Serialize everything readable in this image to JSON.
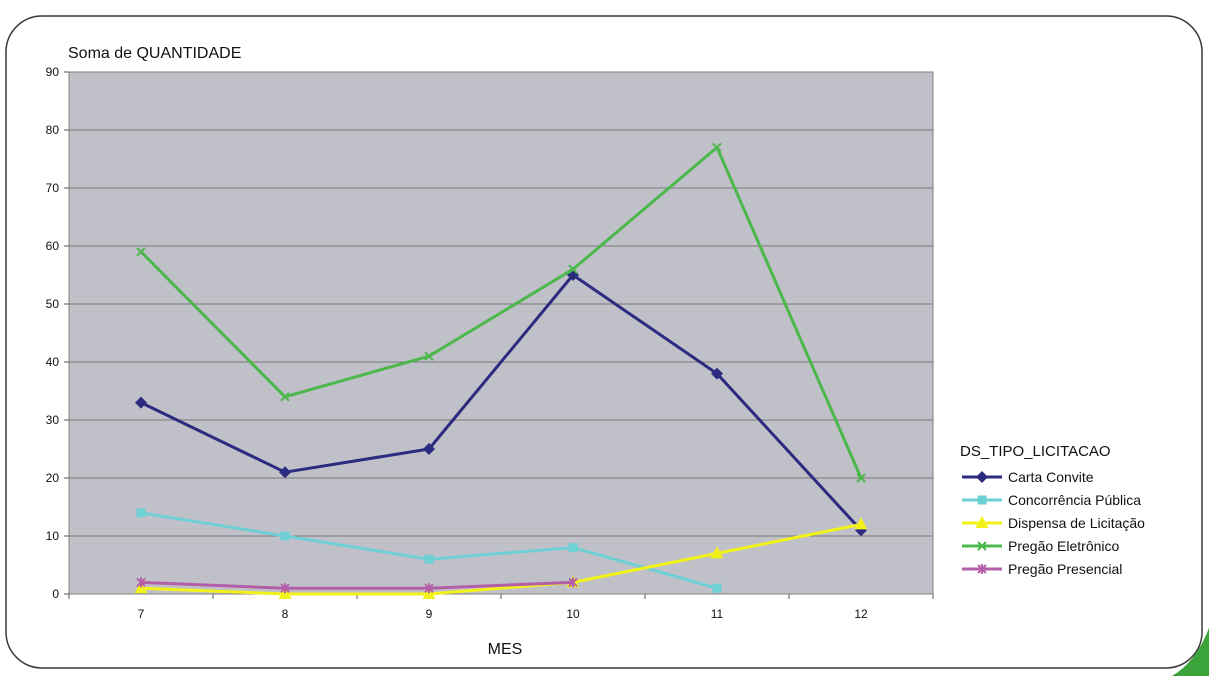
{
  "chart_data": {
    "type": "line",
    "title": "Soma de QUANTIDADE",
    "xlabel": "MES",
    "ylabel": "",
    "categories": [
      "7",
      "8",
      "9",
      "10",
      "11",
      "12"
    ],
    "ylim": [
      0,
      90
    ],
    "yticks": [
      0,
      10,
      20,
      30,
      40,
      50,
      60,
      70,
      80,
      90
    ],
    "grid": true,
    "legend_title": "DS_TIPO_LICITACAO",
    "legend_position": "right",
    "series": [
      {
        "name": "Carta Convite",
        "color": "#2b2b80",
        "marker": "diamond",
        "values": [
          33,
          21,
          25,
          55,
          38,
          11
        ]
      },
      {
        "name": "Concorrência Pública",
        "color": "#6ed0d4",
        "marker": "square",
        "values": [
          14,
          10,
          6,
          8,
          1,
          null
        ]
      },
      {
        "name": "Dispensa de Licitação",
        "color": "#f2f21a",
        "marker": "triangle",
        "values": [
          1,
          0,
          0,
          2,
          7,
          12
        ]
      },
      {
        "name": "Pregão Eletrônico",
        "color": "#4cb84c",
        "marker": "x",
        "values": [
          59,
          34,
          41,
          56,
          77,
          20
        ]
      },
      {
        "name": "Pregão Presencial",
        "color": "#b35fa8",
        "marker": "star",
        "values": [
          2,
          1,
          1,
          2,
          null,
          null
        ]
      }
    ]
  }
}
